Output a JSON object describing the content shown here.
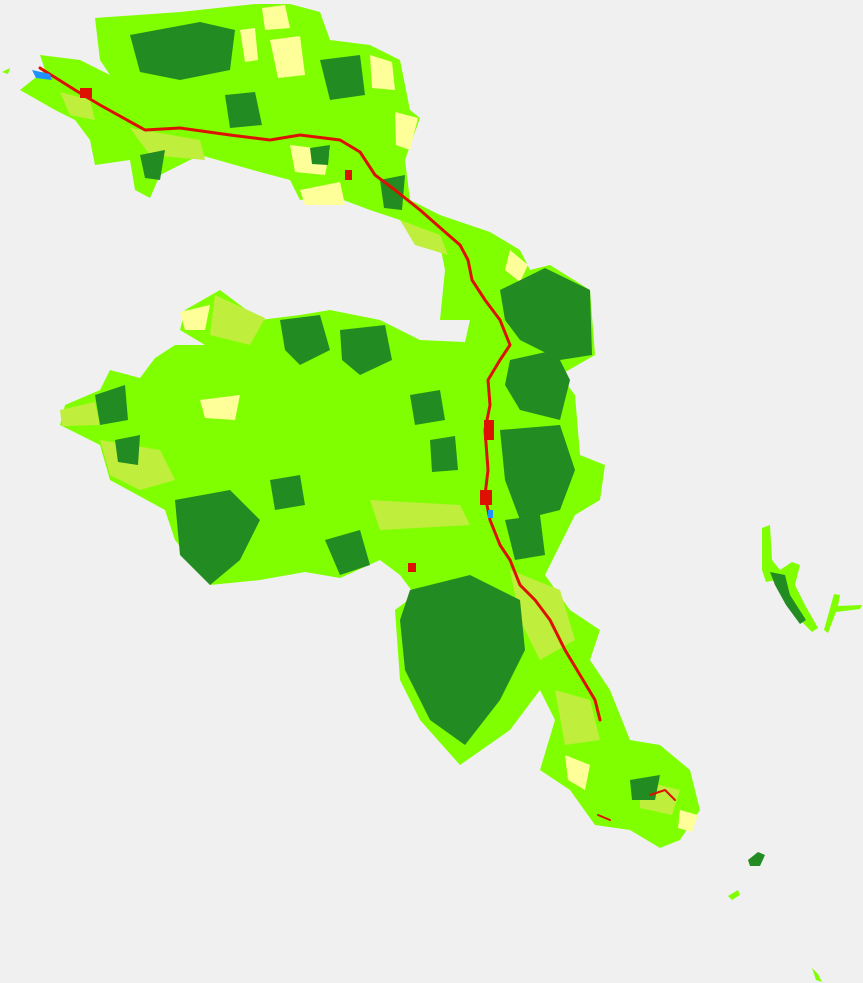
{
  "map": {
    "type": "land-cover-raster",
    "background_color": "#f0f0f0",
    "classes": [
      {
        "key": "herbaceous",
        "color": "#7fff00"
      },
      {
        "key": "forest",
        "color": "#228b22"
      },
      {
        "key": "agricultural",
        "color": "#ffff99"
      },
      {
        "key": "mixed-vegetation",
        "color": "#bfee3c"
      },
      {
        "key": "urban-roads",
        "color": "#dd1100"
      },
      {
        "key": "water",
        "color": "#1e90ff"
      }
    ],
    "text_labels": []
  }
}
